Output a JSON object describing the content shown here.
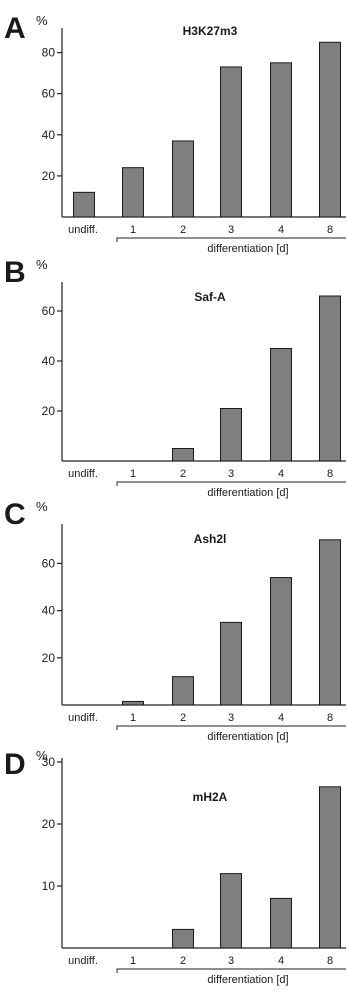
{
  "chart_data": [
    {
      "type": "bar",
      "panel_label": "A",
      "title": "H3K27m3",
      "ylabel": "%",
      "xlabel": "differentiation [d]",
      "categories": [
        "undiff.",
        "1",
        "2",
        "3",
        "4",
        "8"
      ],
      "values": [
        12,
        24,
        37,
        73,
        75,
        85
      ],
      "ylim": [
        0,
        90
      ],
      "yticks": [
        20,
        40,
        60,
        80
      ],
      "bar_color": "#7f7f7f",
      "grid": false
    },
    {
      "type": "bar",
      "panel_label": "B",
      "title": "Saf-A",
      "ylabel": "%",
      "xlabel": "differentiation [d]",
      "categories": [
        "undiff.",
        "1",
        "2",
        "3",
        "4",
        "8"
      ],
      "values": [
        0,
        0,
        5,
        21,
        45,
        66
      ],
      "ylim": [
        0,
        70
      ],
      "yticks": [
        20,
        40,
        60
      ],
      "bar_color": "#7f7f7f",
      "grid": false
    },
    {
      "type": "bar",
      "panel_label": "C",
      "title": "Ash2l",
      "ylabel": "%",
      "xlabel": "differentiation [d]",
      "categories": [
        "undiff.",
        "1",
        "2",
        "3",
        "4",
        "8"
      ],
      "values": [
        0,
        1.5,
        12,
        35,
        54,
        70
      ],
      "ylim": [
        0,
        75
      ],
      "yticks": [
        20,
        40,
        60
      ],
      "bar_color": "#7f7f7f",
      "grid": false
    },
    {
      "type": "bar",
      "panel_label": "D",
      "title": "mH2A",
      "ylabel": "%",
      "xlabel": "differentiation [d]",
      "categories": [
        "undiff.",
        "1",
        "2",
        "3",
        "4",
        "8"
      ],
      "values": [
        0,
        0,
        3,
        12,
        8,
        26
      ],
      "ylim": [
        0,
        30
      ],
      "yticks": [
        10,
        20,
        30
      ],
      "bar_color": "#7f7f7f",
      "grid": false
    }
  ]
}
